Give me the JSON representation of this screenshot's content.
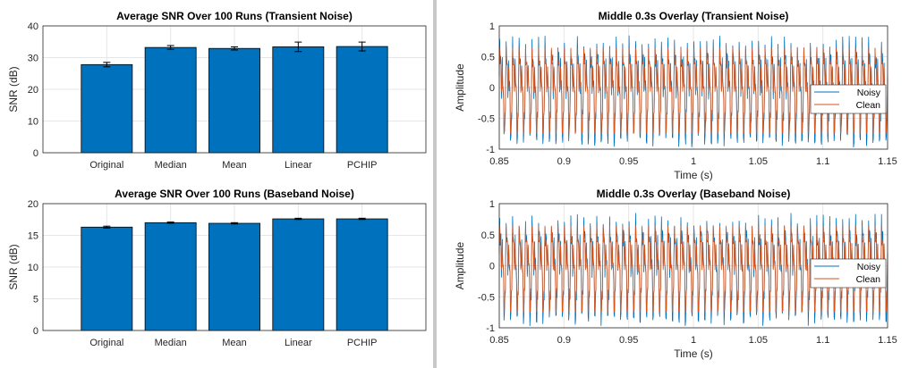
{
  "colors": {
    "bar": "#0072BD",
    "noisy": "#0072BD",
    "clean": "#D95319",
    "grid": "#e6e6e6",
    "axis": "#262626"
  },
  "chart_data": [
    {
      "type": "bar",
      "title": "Average SNR Over 100 Runs (Transient Noise)",
      "xlabel": "",
      "ylabel": "SNR (dB)",
      "ylim": [
        0,
        40
      ],
      "yticks": [
        0,
        10,
        20,
        30,
        40
      ],
      "grid": true,
      "categories": [
        "Original",
        "Median",
        "Mean",
        "Linear",
        "PCHIP"
      ],
      "values": [
        27.8,
        33.2,
        32.9,
        33.4,
        33.5
      ],
      "errors": [
        0.7,
        0.6,
        0.5,
        1.5,
        1.4
      ]
    },
    {
      "type": "bar",
      "title": "Average SNR Over 100 Runs (Baseband Noise)",
      "xlabel": "",
      "ylabel": "SNR (dB)",
      "ylim": [
        0,
        20
      ],
      "yticks": [
        0,
        5,
        10,
        15,
        20
      ],
      "grid": true,
      "categories": [
        "Original",
        "Median",
        "Mean",
        "Linear",
        "PCHIP"
      ],
      "values": [
        16.3,
        17.0,
        16.9,
        17.6,
        17.6
      ],
      "errors": [
        0.15,
        0.1,
        0.1,
        0.1,
        0.1
      ]
    },
    {
      "type": "line",
      "title": "Middle 0.3s Overlay (Transient Noise)",
      "xlabel": "Time (s)",
      "ylabel": "Amplitude",
      "xlim": [
        0.85,
        1.15
      ],
      "ylim": [
        -1,
        1
      ],
      "xticks": [
        0.85,
        0.9,
        0.95,
        1,
        1.05,
        1.1,
        1.15
      ],
      "yticks": [
        -1,
        -0.5,
        0,
        0.5,
        1
      ],
      "grid": true,
      "legend": "right",
      "series": [
        {
          "name": "Noisy",
          "amplitude": 0.85,
          "cycles_per_window": 60,
          "noise": 0.12
        },
        {
          "name": "Clean",
          "amplitude": 0.75,
          "cycles_per_window": 60,
          "noise": 0
        }
      ]
    },
    {
      "type": "line",
      "title": "Middle 0.3s Overlay (Baseband Noise)",
      "xlabel": "Time (s)",
      "ylabel": "Amplitude",
      "xlim": [
        0.85,
        1.15
      ],
      "ylim": [
        -1,
        1
      ],
      "xticks": [
        0.85,
        0.9,
        0.95,
        1,
        1.05,
        1.1,
        1.15
      ],
      "yticks": [
        -1,
        -0.5,
        0,
        0.5,
        1
      ],
      "grid": true,
      "legend": "right",
      "series": [
        {
          "name": "Noisy",
          "amplitude": 0.85,
          "cycles_per_window": 60,
          "noise": 0.12
        },
        {
          "name": "Clean",
          "amplitude": 0.75,
          "cycles_per_window": 60,
          "noise": 0
        }
      ]
    }
  ]
}
